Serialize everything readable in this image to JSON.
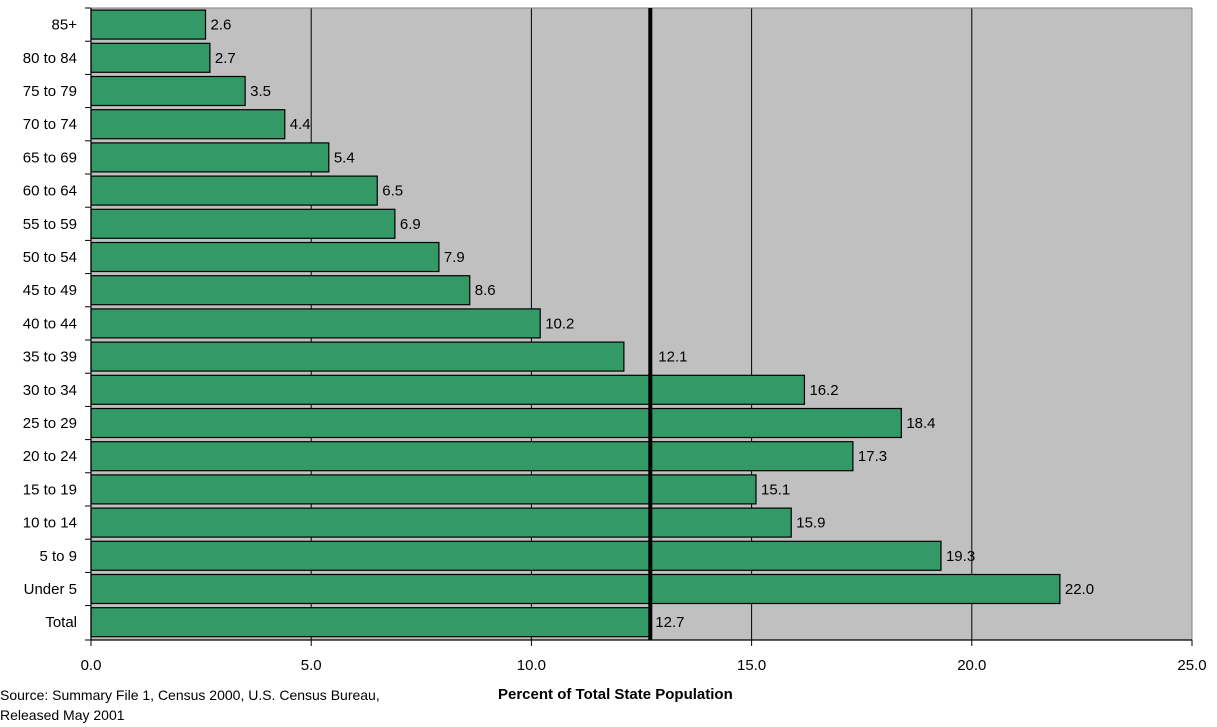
{
  "chart_data": {
    "type": "bar",
    "orientation": "horizontal",
    "categories": [
      "85+",
      "80 to 84",
      "75 to 79",
      "70 to 74",
      "65 to 69",
      "60 to 64",
      "55 to 59",
      "50 to 54",
      "45 to 49",
      "40 to 44",
      "35 to 39",
      "30 to 34",
      "25 to 29",
      "20 to 24",
      "15 to 19",
      "10 to 14",
      "5 to 9",
      "Under 5",
      "Total"
    ],
    "values": [
      2.6,
      2.7,
      3.5,
      4.4,
      5.4,
      6.5,
      6.9,
      7.9,
      8.6,
      10.2,
      12.1,
      16.2,
      18.4,
      17.3,
      15.1,
      15.9,
      19.3,
      22.0,
      12.7
    ],
    "data_labels": [
      "2.6",
      "2.7",
      "3.5",
      "4.4",
      "5.4",
      "6.5",
      "6.9",
      "7.9",
      "8.6",
      "10.2",
      "12.1",
      "16.2",
      "18.4",
      "17.3",
      "15.1",
      "15.9",
      "19.3",
      "22.0",
      "12.7"
    ],
    "x_ticks": [
      "0.0",
      "5.0",
      "10.0",
      "15.0",
      "20.0",
      "25.0"
    ],
    "xlim": [
      0,
      25
    ],
    "xlabel": "Percent of Total State Population",
    "reference_line": 12.7,
    "grid": true,
    "legend": "none",
    "colors": {
      "bar": "#339966",
      "plot_background": "#c0c0c0",
      "gridline": "#000000",
      "reference_line": "#000000"
    }
  },
  "footer": {
    "source": "Source: Summary File 1, Census 2000, U.S. Census Bureau,\nReleased May 2001"
  }
}
